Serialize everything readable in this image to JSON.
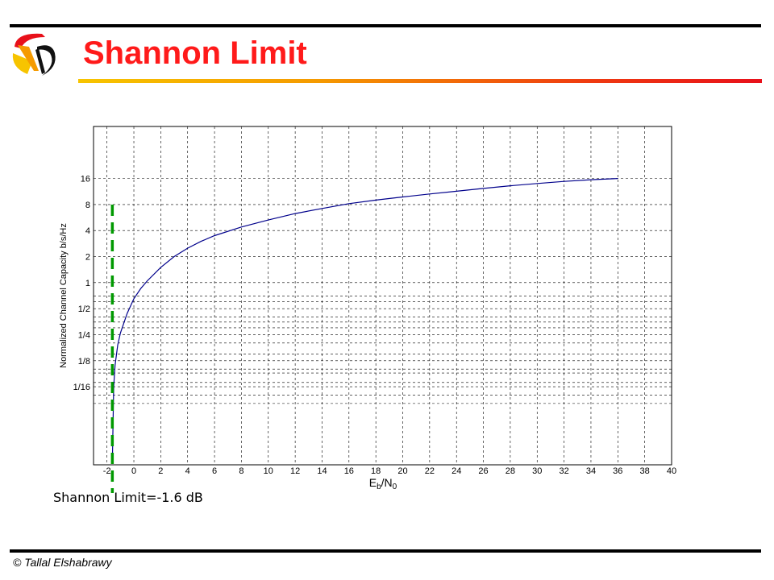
{
  "slide": {
    "title": "Shannon Limit",
    "annotation": "Shannon Limit=-1.6 dB",
    "footer": "© Tallal Elshabrawy"
  },
  "colors": {
    "title": "#ff1a1a",
    "curve": "#00008b",
    "limit_line": "#009900",
    "grid": "#000000"
  },
  "chart_data": {
    "type": "line",
    "title": "",
    "ylabel": "Normalized Channel Capacity b/s/Hz",
    "xlabel_main": "E",
    "xlabel_sub1": "b",
    "xlabel_mid": "/N",
    "xlabel_sub2": "0",
    "xlim": [
      -3,
      40
    ],
    "ylim_log2": [
      -7,
      6
    ],
    "y_scale": "log2",
    "grid": true,
    "x_ticks": [
      -2,
      0,
      2,
      4,
      6,
      8,
      10,
      12,
      14,
      16,
      18,
      20,
      22,
      24,
      26,
      28,
      30,
      32,
      34,
      36,
      38,
      40
    ],
    "y_ticks": [
      {
        "value": 0.0625,
        "label": "1/16"
      },
      {
        "value": 0.125,
        "label": "1/8"
      },
      {
        "value": 0.25,
        "label": "1/4"
      },
      {
        "value": 0.5,
        "label": "1/2"
      },
      {
        "value": 1,
        "label": "1"
      },
      {
        "value": 2,
        "label": "2"
      },
      {
        "value": 4,
        "label": "4"
      },
      {
        "value": 8,
        "label": "8"
      },
      {
        "value": 16,
        "label": "16"
      }
    ],
    "y_minor_grid": [
      0.04,
      0.05,
      0.07,
      0.09,
      0.1,
      0.15,
      0.2,
      0.3,
      0.35,
      0.4,
      0.6,
      0.7
    ],
    "series": [
      {
        "x": [
          -1.59,
          -1.5,
          -1.4,
          -1.2,
          -1.0,
          -0.5,
          0.0,
          0.5,
          1.0,
          2.0,
          3.0,
          4.0,
          5.0,
          6.0,
          8.0,
          10.0,
          12.0,
          14.0,
          16.0,
          18.0,
          20.0,
          22.0,
          24.0,
          26.0,
          28.0,
          30.0,
          32.0,
          34.0,
          36.0
        ],
        "y": [
          0.01,
          0.0625,
          0.11,
          0.19,
          0.26,
          0.44,
          0.65,
          0.85,
          1.05,
          1.5,
          2.0,
          2.5,
          3.0,
          3.5,
          4.4,
          5.3,
          6.3,
          7.2,
          8.2,
          9.0,
          9.8,
          10.6,
          11.4,
          12.3,
          13.2,
          14.0,
          14.8,
          15.5,
          16.0
        ]
      }
    ],
    "limit_line_x": -1.6
  }
}
